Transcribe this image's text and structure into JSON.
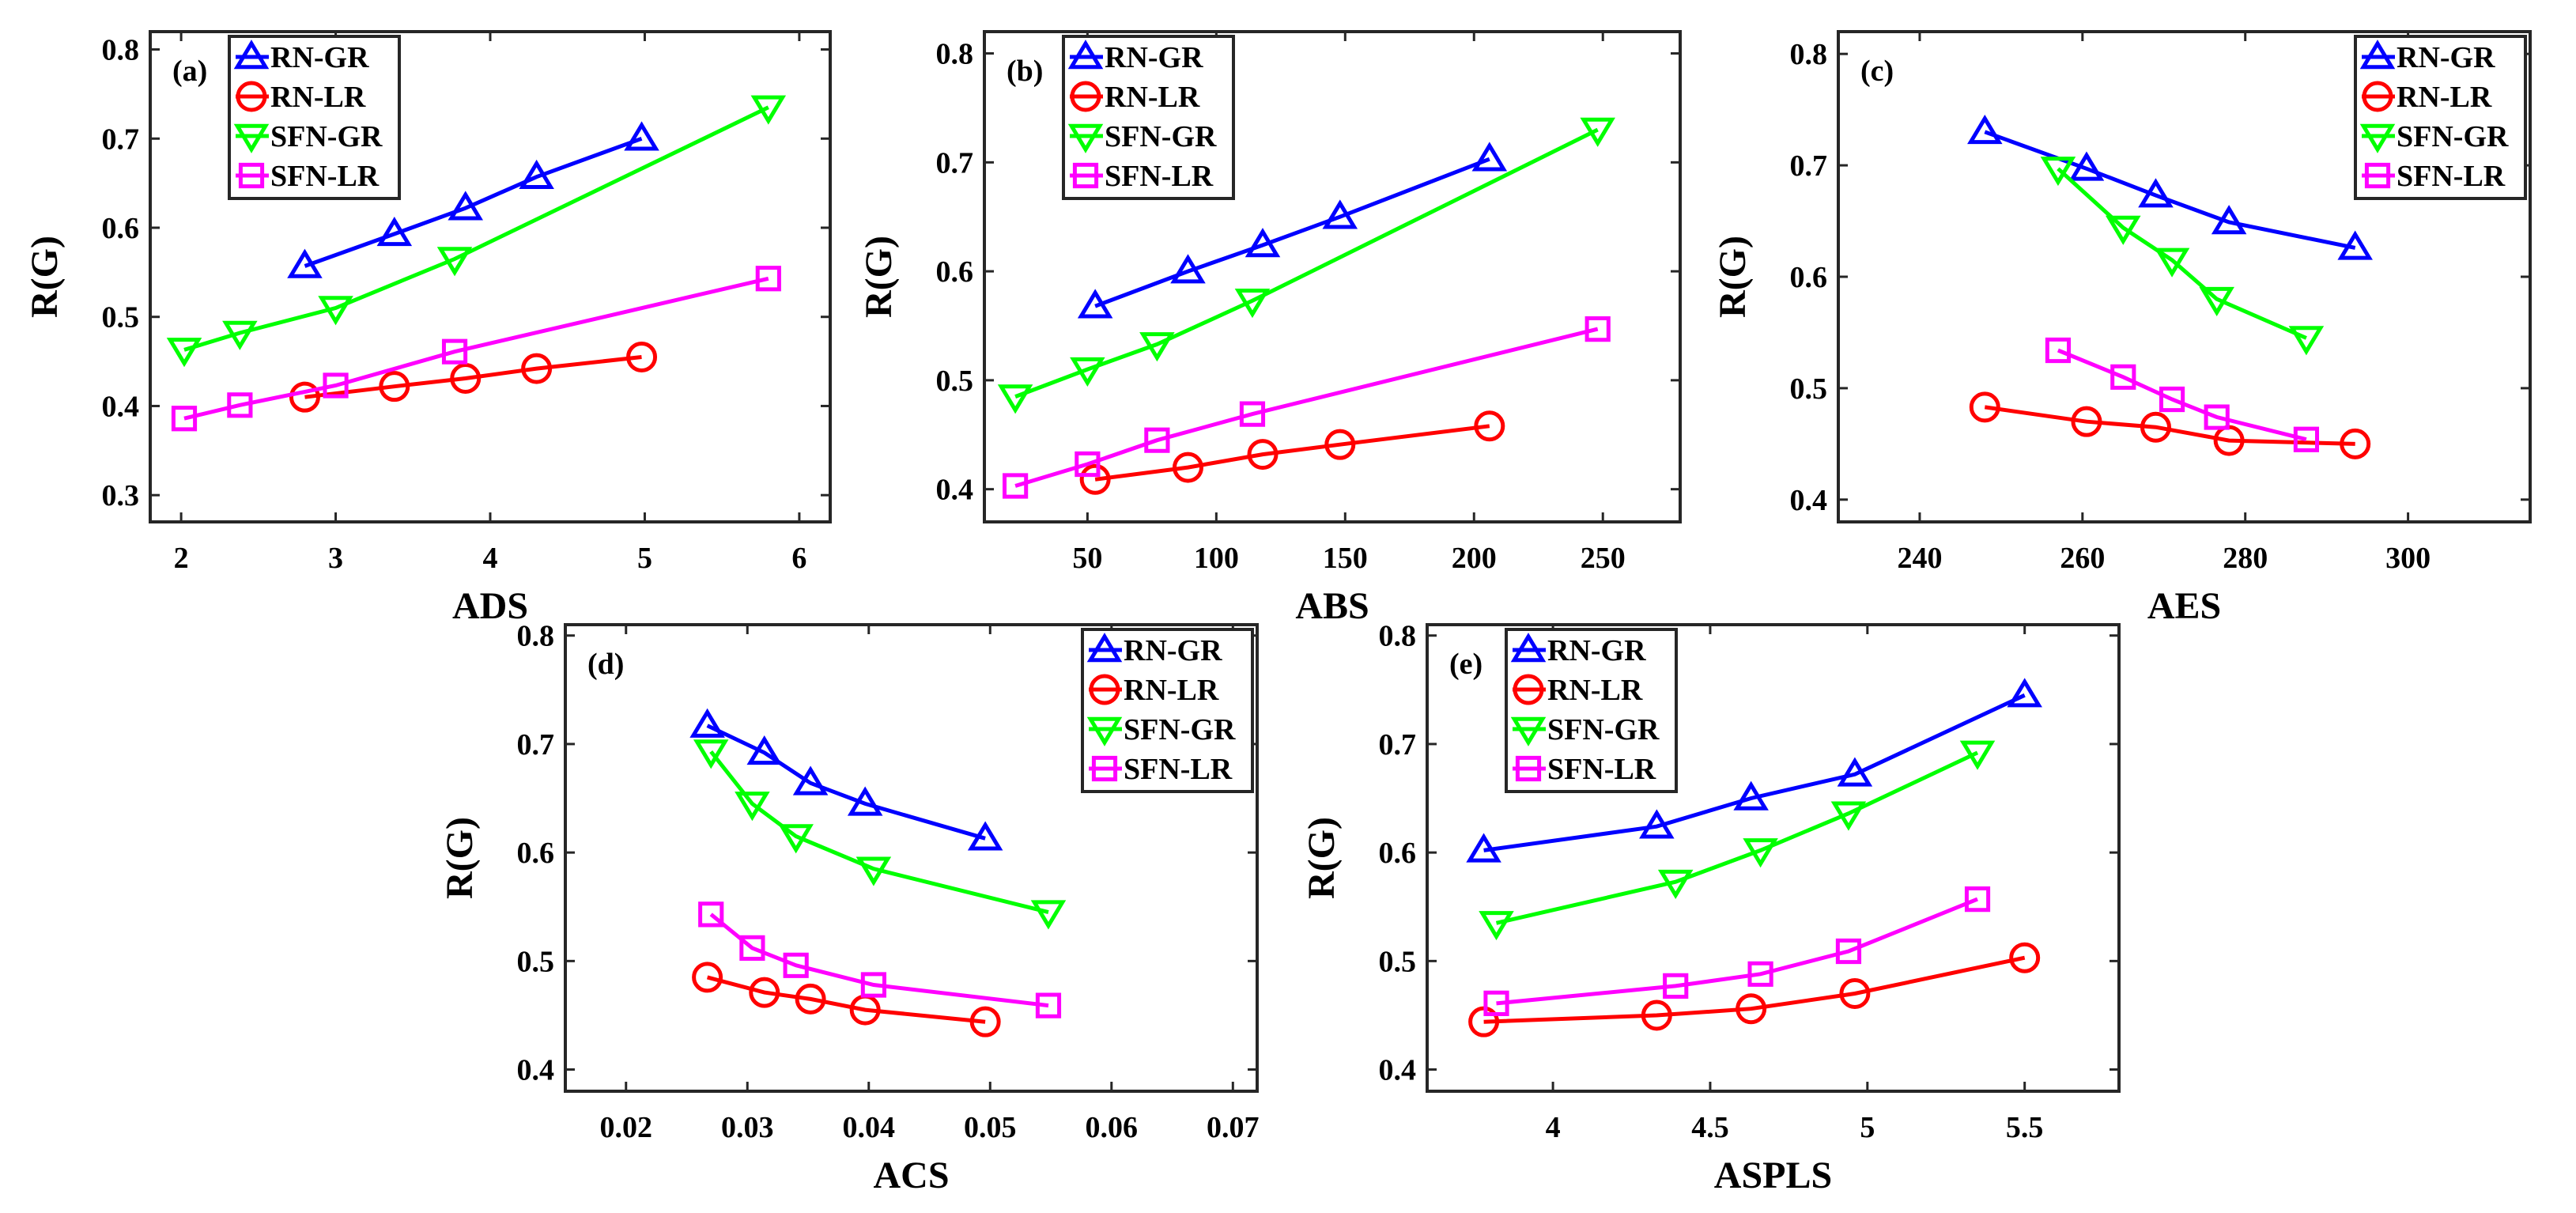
{
  "chart_data": [
    {
      "type": "line",
      "panel_label": "(a)",
      "xlabel": "ADS",
      "ylabel": "R(G)",
      "xlim": [
        1.8,
        6.2
      ],
      "ylim": [
        0.27,
        0.82
      ],
      "xticks": [
        2,
        3,
        4,
        5,
        6
      ],
      "xtick_labels": [
        "2",
        "3",
        "4",
        "5",
        "6"
      ],
      "yticks": [
        0.3,
        0.4,
        0.5,
        0.6,
        0.7,
        0.8
      ],
      "ytick_labels": [
        "0.3",
        "0.4",
        "0.5",
        "0.6",
        "0.7",
        "0.8"
      ],
      "legend_position": "top-left",
      "series": [
        {
          "name": "RN-GR",
          "marker": "triangle-up",
          "color": "#0000ff",
          "x": [
            2.8,
            3.38,
            3.84,
            4.3,
            4.98
          ],
          "y": [
            0.557,
            0.593,
            0.622,
            0.657,
            0.7
          ]
        },
        {
          "name": "RN-LR",
          "marker": "circle",
          "color": "#ff0000",
          "x": [
            2.8,
            3.38,
            3.84,
            4.3,
            4.98
          ],
          "y": [
            0.41,
            0.422,
            0.431,
            0.442,
            0.455
          ]
        },
        {
          "name": "SFN-GR",
          "marker": "triangle-down",
          "color": "#00ff00",
          "x": [
            2.02,
            2.38,
            3.0,
            3.77,
            5.8
          ],
          "y": [
            0.463,
            0.482,
            0.51,
            0.565,
            0.735
          ]
        },
        {
          "name": "SFN-LR",
          "marker": "square",
          "color": "#ff00ff",
          "x": [
            2.02,
            2.38,
            3.0,
            3.77,
            5.8
          ],
          "y": [
            0.386,
            0.401,
            0.423,
            0.461,
            0.543
          ]
        }
      ]
    },
    {
      "type": "line",
      "panel_label": "(b)",
      "xlabel": "ABS",
      "ylabel": "R(G)",
      "xlim": [
        10,
        280
      ],
      "ylim": [
        0.37,
        0.82
      ],
      "xticks": [
        50,
        100,
        150,
        200,
        250
      ],
      "xtick_labels": [
        "50",
        "100",
        "150",
        "200",
        "250"
      ],
      "yticks": [
        0.4,
        0.5,
        0.6,
        0.7,
        0.8
      ],
      "ytick_labels": [
        "0.4",
        "0.5",
        "0.6",
        "0.7",
        "0.8"
      ],
      "legend_position": "top-left",
      "series": [
        {
          "name": "RN-GR",
          "marker": "triangle-up",
          "color": "#0000ff",
          "x": [
            53,
            89,
            118,
            148,
            206
          ],
          "y": [
            0.568,
            0.6,
            0.624,
            0.65,
            0.703
          ]
        },
        {
          "name": "RN-LR",
          "marker": "circle",
          "color": "#ff0000",
          "x": [
            53,
            89,
            118,
            148,
            206
          ],
          "y": [
            0.409,
            0.42,
            0.432,
            0.441,
            0.458
          ]
        },
        {
          "name": "SFN-GR",
          "marker": "triangle-down",
          "color": "#00ff00",
          "x": [
            22,
            50,
            77,
            114,
            248
          ],
          "y": [
            0.485,
            0.51,
            0.533,
            0.573,
            0.73
          ]
        },
        {
          "name": "SFN-LR",
          "marker": "square",
          "color": "#ff00ff",
          "x": [
            22,
            50,
            77,
            114,
            248
          ],
          "y": [
            0.403,
            0.423,
            0.445,
            0.469,
            0.547
          ]
        }
      ]
    },
    {
      "type": "line",
      "panel_label": "(c)",
      "xlabel": "AES",
      "ylabel": "R(G)",
      "xlim": [
        230,
        315
      ],
      "ylim": [
        0.38,
        0.82
      ],
      "xticks": [
        240,
        260,
        280,
        300
      ],
      "xtick_labels": [
        "240",
        "260",
        "280",
        "300"
      ],
      "yticks": [
        0.4,
        0.5,
        0.6,
        0.7,
        0.8
      ],
      "ytick_labels": [
        "0.4",
        "0.5",
        "0.6",
        "0.7",
        "0.8"
      ],
      "legend_position": "top-right",
      "series": [
        {
          "name": "RN-GR",
          "marker": "triangle-up",
          "color": "#0000ff",
          "x": [
            248,
            260.5,
            269,
            278,
            293.5
          ],
          "y": [
            0.73,
            0.697,
            0.673,
            0.649,
            0.626
          ]
        },
        {
          "name": "RN-LR",
          "marker": "circle",
          "color": "#ff0000",
          "x": [
            248,
            260.5,
            269,
            278,
            293.5
          ],
          "y": [
            0.483,
            0.47,
            0.465,
            0.453,
            0.45
          ]
        },
        {
          "name": "SFN-GR",
          "marker": "triangle-down",
          "color": "#00ff00",
          "x": [
            257,
            265,
            271,
            276.5,
            287.5
          ],
          "y": [
            0.697,
            0.644,
            0.615,
            0.58,
            0.545
          ]
        },
        {
          "name": "SFN-LR",
          "marker": "square",
          "color": "#ff00ff",
          "x": [
            257,
            265,
            271,
            276.5,
            287.5
          ],
          "y": [
            0.534,
            0.51,
            0.49,
            0.474,
            0.454
          ]
        }
      ]
    },
    {
      "type": "line",
      "panel_label": "(d)",
      "xlabel": "ACS",
      "ylabel": "R(G)",
      "xlim": [
        0.015,
        0.072
      ],
      "ylim": [
        0.38,
        0.81
      ],
      "xticks": [
        0.02,
        0.03,
        0.04,
        0.05,
        0.06,
        0.07
      ],
      "xtick_labels": [
        "0.02",
        "0.03",
        "0.04",
        "0.05",
        "0.06",
        "0.07"
      ],
      "yticks": [
        0.4,
        0.5,
        0.6,
        0.7,
        0.8
      ],
      "ytick_labels": [
        "0.4",
        "0.5",
        "0.6",
        "0.7",
        "0.8"
      ],
      "legend_position": "top-right",
      "series": [
        {
          "name": "RN-GR",
          "marker": "triangle-up",
          "color": "#0000ff",
          "x": [
            0.0267,
            0.0314,
            0.0352,
            0.0397,
            0.0496
          ],
          "y": [
            0.717,
            0.692,
            0.664,
            0.645,
            0.613
          ]
        },
        {
          "name": "RN-LR",
          "marker": "circle",
          "color": "#ff0000",
          "x": [
            0.0267,
            0.0314,
            0.0352,
            0.0397,
            0.0496
          ],
          "y": [
            0.485,
            0.471,
            0.465,
            0.455,
            0.444
          ]
        },
        {
          "name": "SFN-GR",
          "marker": "triangle-down",
          "color": "#00ff00",
          "x": [
            0.027,
            0.0304,
            0.034,
            0.0404,
            0.0548
          ],
          "y": [
            0.693,
            0.645,
            0.615,
            0.585,
            0.545
          ]
        },
        {
          "name": "SFN-LR",
          "marker": "square",
          "color": "#ff00ff",
          "x": [
            0.027,
            0.0304,
            0.034,
            0.0404,
            0.0548
          ],
          "y": [
            0.543,
            0.512,
            0.496,
            0.478,
            0.459
          ]
        }
      ]
    },
    {
      "type": "line",
      "panel_label": "(e)",
      "xlabel": "ASPLS",
      "ylabel": "R(G)",
      "xlim": [
        3.6,
        5.8
      ],
      "ylim": [
        0.38,
        0.81
      ],
      "xticks": [
        4,
        4.5,
        5,
        5.5
      ],
      "xtick_labels": [
        "4",
        "4.5",
        "5",
        "5.5"
      ],
      "yticks": [
        0.4,
        0.5,
        0.6,
        0.7,
        0.8
      ],
      "ytick_labels": [
        "0.4",
        "0.5",
        "0.6",
        "0.7",
        "0.8"
      ],
      "legend_position": "top-left",
      "series": [
        {
          "name": "RN-GR",
          "marker": "triangle-up",
          "color": "#0000ff",
          "x": [
            3.78,
            4.33,
            4.63,
            4.96,
            5.5
          ],
          "y": [
            0.602,
            0.624,
            0.65,
            0.672,
            0.745
          ]
        },
        {
          "name": "RN-LR",
          "marker": "circle",
          "color": "#ff0000",
          "x": [
            3.78,
            4.33,
            4.63,
            4.96,
            5.5
          ],
          "y": [
            0.444,
            0.45,
            0.456,
            0.47,
            0.503
          ]
        },
        {
          "name": "SFN-GR",
          "marker": "triangle-down",
          "color": "#00ff00",
          "x": [
            3.82,
            4.39,
            4.66,
            4.94,
            5.35
          ],
          "y": [
            0.535,
            0.573,
            0.602,
            0.636,
            0.692
          ]
        },
        {
          "name": "SFN-LR",
          "marker": "square",
          "color": "#ff00ff",
          "x": [
            3.82,
            4.39,
            4.66,
            4.94,
            5.35
          ],
          "y": [
            0.461,
            0.477,
            0.488,
            0.509,
            0.557
          ]
        }
      ]
    }
  ]
}
